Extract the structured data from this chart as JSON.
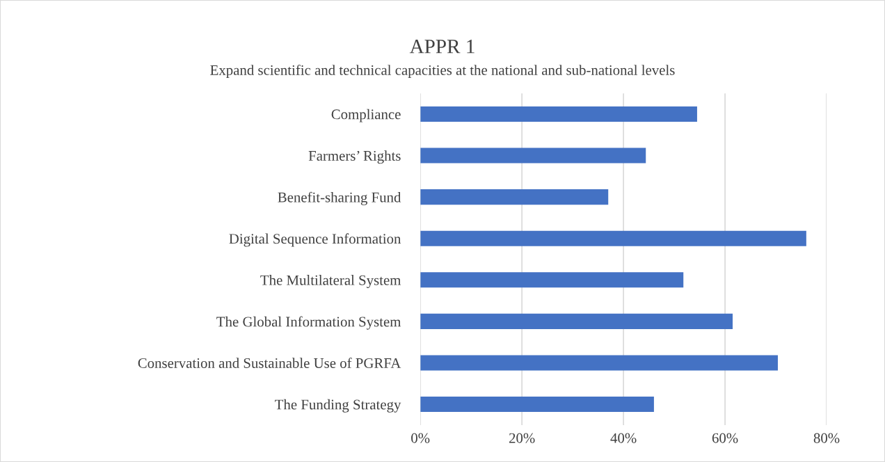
{
  "chart_data": {
    "type": "bar",
    "orientation": "horizontal",
    "title": "APPR 1",
    "subtitle": "Expand scientific and technical capacities at the national and sub-national levels",
    "categories": [
      "Compliance",
      "Farmers’ Rights",
      "Benefit-sharing Fund",
      "Digital Sequence Information",
      "The Multilateral System",
      "The Global Information System",
      "Conservation and Sustainable Use of PGRFA",
      "The Funding Strategy"
    ],
    "values": [
      54.5,
      44.4,
      37.0,
      76.0,
      51.8,
      61.5,
      70.4,
      46.0
    ],
    "color": "#4472c4",
    "xlim": [
      0,
      80
    ],
    "xticks": [
      {
        "value": 0,
        "label": "0%"
      },
      {
        "value": 20,
        "label": "20%"
      },
      {
        "value": 40,
        "label": "40%"
      },
      {
        "value": 60,
        "label": "60%"
      },
      {
        "value": 80,
        "label": "80%"
      }
    ],
    "grid": "x",
    "legend": false
  }
}
